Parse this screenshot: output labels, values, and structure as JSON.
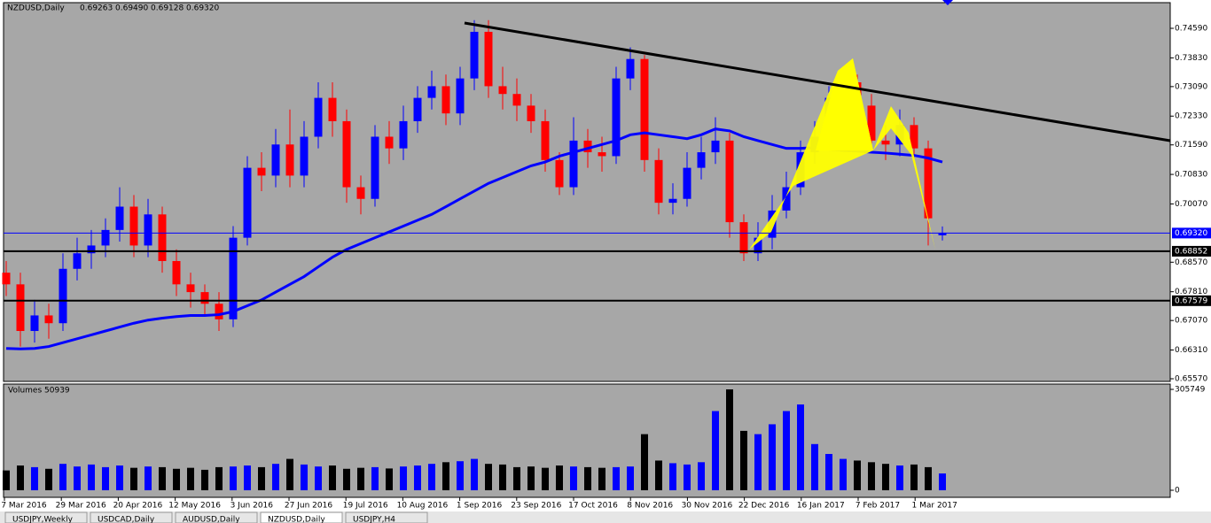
{
  "chart_data": {
    "type": "candlestick",
    "title": "NZDUSD,Daily",
    "header_values": [
      "0.69263",
      "0.69490",
      "0.69128",
      "0.69320"
    ],
    "up_color": "#0000ff",
    "down_color": "#ff0000",
    "ylim": [
      0.65479,
      0.75228
    ],
    "yticks": [
      {
        "value": 0.7459,
        "label": "0.74590"
      },
      {
        "value": 0.7383,
        "label": "0.73830"
      },
      {
        "value": 0.7309,
        "label": "0.73090"
      },
      {
        "value": 0.7233,
        "label": "0.72330"
      },
      {
        "value": 0.7159,
        "label": "0.71590"
      },
      {
        "value": 0.7083,
        "label": "0.70830"
      },
      {
        "value": 0.7007,
        "label": "0.70070"
      },
      {
        "value": 0.6857,
        "label": "0.68570"
      },
      {
        "value": 0.6781,
        "label": "0.67810"
      },
      {
        "value": 0.6707,
        "label": "0.67070"
      },
      {
        "value": 0.6631,
        "label": "0.66310"
      },
      {
        "value": 0.6557,
        "label": "0.65570"
      }
    ],
    "levels": [
      {
        "value": 0.6932,
        "label": "0.69320",
        "color": "#0000ff"
      },
      {
        "value": 0.68852,
        "label": "0.68852",
        "color": "#000000"
      },
      {
        "value": 0.67579,
        "label": "0.67579",
        "color": "#000000"
      }
    ],
    "x_labels": [
      "7 Mar 2016",
      "29 Mar 2016",
      "20 Apr 2016",
      "12 May 2016",
      "3 Jun 2016",
      "27 Jun 2016",
      "19 Jul 2016",
      "10 Aug 2016",
      "1 Sep 2016",
      "23 Sep 2016",
      "17 Oct 2016",
      "8 Nov 2016",
      "30 Nov 2016",
      "22 Dec 2016",
      "16 Jan 2017",
      "7 Feb 2017",
      "1 Mar 2017"
    ],
    "open": [
      0.683,
      0.68,
      0.668,
      0.672,
      0.67,
      0.684,
      0.688,
      0.69,
      0.694,
      0.7,
      0.69,
      0.698,
      0.686,
      0.68,
      0.678,
      0.675,
      0.671,
      0.692,
      0.71,
      0.708,
      0.716,
      0.708,
      0.718,
      0.728,
      0.722,
      0.705,
      0.702,
      0.718,
      0.715,
      0.722,
      0.728,
      0.731,
      0.724,
      0.733,
      0.745,
      0.731,
      0.729,
      0.726,
      0.722,
      0.712,
      0.705,
      0.717,
      0.714,
      0.713,
      0.733,
      0.738,
      0.712,
      0.701,
      0.702,
      0.71,
      0.714,
      0.717,
      0.696,
      0.688,
      0.692,
      0.699,
      0.705,
      0.714,
      0.718,
      0.728,
      0.732,
      0.726,
      0.717,
      0.716,
      0.721,
      0.715,
      0.69263
    ],
    "high": [
      0.686,
      0.683,
      0.676,
      0.675,
      0.688,
      0.692,
      0.694,
      0.697,
      0.705,
      0.703,
      0.702,
      0.7,
      0.689,
      0.683,
      0.68,
      0.678,
      0.695,
      0.713,
      0.714,
      0.72,
      0.725,
      0.722,
      0.732,
      0.732,
      0.725,
      0.708,
      0.721,
      0.722,
      0.726,
      0.731,
      0.735,
      0.734,
      0.736,
      0.748,
      0.748,
      0.736,
      0.733,
      0.729,
      0.725,
      0.714,
      0.723,
      0.72,
      0.718,
      0.736,
      0.741,
      0.739,
      0.715,
      0.706,
      0.714,
      0.718,
      0.723,
      0.719,
      0.698,
      0.696,
      0.703,
      0.709,
      0.717,
      0.722,
      0.731,
      0.735,
      0.734,
      0.729,
      0.721,
      0.725,
      0.723,
      0.717,
      0.6949
    ],
    "low": [
      0.677,
      0.664,
      0.665,
      0.666,
      0.668,
      0.681,
      0.684,
      0.687,
      0.691,
      0.687,
      0.687,
      0.683,
      0.677,
      0.674,
      0.672,
      0.668,
      0.669,
      0.69,
      0.704,
      0.705,
      0.705,
      0.705,
      0.715,
      0.718,
      0.701,
      0.698,
      0.7,
      0.711,
      0.712,
      0.719,
      0.725,
      0.721,
      0.721,
      0.73,
      0.728,
      0.725,
      0.722,
      0.719,
      0.709,
      0.703,
      0.703,
      0.71,
      0.709,
      0.711,
      0.73,
      0.709,
      0.698,
      0.698,
      0.7,
      0.707,
      0.711,
      0.692,
      0.686,
      0.686,
      0.689,
      0.697,
      0.703,
      0.711,
      0.715,
      0.725,
      0.722,
      0.714,
      0.712,
      0.713,
      0.711,
      0.69,
      0.69128
    ],
    "close": [
      0.68,
      0.668,
      0.672,
      0.67,
      0.684,
      0.688,
      0.69,
      0.694,
      0.7,
      0.69,
      0.698,
      0.686,
      0.68,
      0.678,
      0.675,
      0.671,
      0.692,
      0.71,
      0.708,
      0.716,
      0.708,
      0.718,
      0.728,
      0.722,
      0.705,
      0.702,
      0.718,
      0.715,
      0.722,
      0.728,
      0.731,
      0.724,
      0.733,
      0.745,
      0.731,
      0.729,
      0.726,
      0.722,
      0.712,
      0.705,
      0.717,
      0.714,
      0.713,
      0.733,
      0.738,
      0.712,
      0.701,
      0.702,
      0.71,
      0.714,
      0.717,
      0.696,
      0.688,
      0.692,
      0.699,
      0.705,
      0.714,
      0.718,
      0.728,
      0.732,
      0.726,
      0.717,
      0.716,
      0.721,
      0.715,
      0.697,
      0.6932
    ],
    "ma": {
      "color": "#0000ff",
      "values": [
        0.6635,
        0.6634,
        0.6635,
        0.664,
        0.665,
        0.666,
        0.667,
        0.668,
        0.669,
        0.67,
        0.6708,
        0.6713,
        0.6717,
        0.672,
        0.672,
        0.6722,
        0.673,
        0.6745,
        0.676,
        0.678,
        0.68,
        0.682,
        0.6845,
        0.687,
        0.689,
        0.6905,
        0.692,
        0.6935,
        0.695,
        0.6965,
        0.698,
        0.7,
        0.702,
        0.704,
        0.706,
        0.7075,
        0.709,
        0.7105,
        0.7115,
        0.713,
        0.714,
        0.715,
        0.716,
        0.717,
        0.7185,
        0.719,
        0.7185,
        0.718,
        0.7175,
        0.7185,
        0.72,
        0.7195,
        0.718,
        0.717,
        0.716,
        0.715,
        0.715,
        0.7152,
        0.7148,
        0.7145,
        0.7143,
        0.714,
        0.7138,
        0.7135,
        0.7132,
        0.7125,
        0.7115
      ]
    },
    "volume": {
      "label": "Volumes 50939",
      "ylim": [
        0,
        305749
      ],
      "yticks": [
        0,
        305749
      ],
      "values": [
        60000,
        75000,
        70000,
        65000,
        80000,
        72000,
        78000,
        70000,
        75000,
        68000,
        72000,
        70000,
        65000,
        68000,
        62000,
        70000,
        72000,
        75000,
        70000,
        80000,
        95000,
        78000,
        72000,
        75000,
        65000,
        68000,
        70000,
        66000,
        72000,
        75000,
        80000,
        85000,
        88000,
        95000,
        80000,
        78000,
        70000,
        72000,
        68000,
        75000,
        72000,
        70000,
        68000,
        70000,
        72000,
        170000,
        90000,
        82000,
        78000,
        85000,
        240000,
        305749,
        180000,
        170000,
        200000,
        240000,
        260000,
        140000,
        110000,
        95000,
        90000,
        85000,
        80000,
        75000,
        78000,
        70000,
        50939
      ]
    },
    "tabs": [
      "USDJPY,Weekly",
      "USDCAD,Daily",
      "AUDUSD,Daily",
      "NZDUSD,Daily",
      "USDJPY,H4"
    ]
  }
}
